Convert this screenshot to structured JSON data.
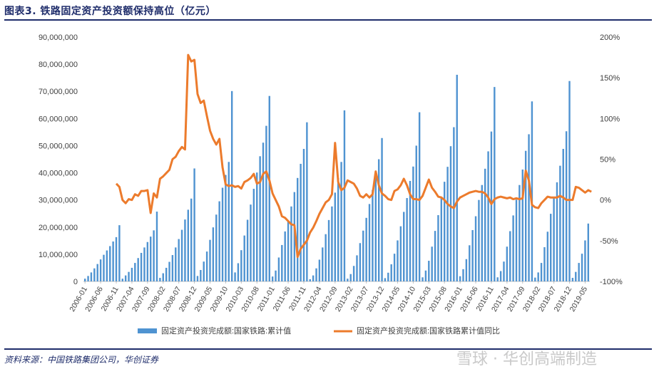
{
  "header": {
    "title": "图表3.    铁路固定资产投资额保持高位（亿元）"
  },
  "footer": {
    "source": "资料来源：中国铁路集团公司，华创证券",
    "watermark": "雪球 · 华创高端制造"
  },
  "colors": {
    "bar": "#4f93d1",
    "line": "#ec7b2c",
    "rule": "#1f2d6b",
    "text": "#333333"
  },
  "chart_data": {
    "type": "bar",
    "title": "",
    "xlabel": "",
    "ylabel": "",
    "y_left": {
      "min": 0,
      "max": 90000000,
      "ticks": [
        "0",
        "10,000,000",
        "20,000,000",
        "30,000,000",
        "40,000,000",
        "50,000,000",
        "60,000,000",
        "70,000,000",
        "80,000,000",
        "90,000,000"
      ]
    },
    "y_right": {
      "min": -100,
      "max": 200,
      "unit": "%",
      "ticks": [
        "-100%",
        "-50%",
        "0%",
        "50%",
        "100%",
        "150%",
        "200%"
      ]
    },
    "x_tick_labels": [
      "2006-01",
      "2006-06",
      "2006-11",
      "2007-04",
      "2007-09",
      "2008-02",
      "2008-07",
      "2008-12",
      "2009-05",
      "2009-10",
      "2010-03",
      "2010-08",
      "2011-01",
      "2011-06",
      "2011-11",
      "2012-04",
      "2012-09",
      "2013-02",
      "2013-07",
      "2013-12",
      "2014-05",
      "2014-10",
      "2015-03",
      "2015-08",
      "2016-01",
      "2016-06",
      "2016-11",
      "2017-04",
      "2017-09",
      "2018-02",
      "2018-07",
      "2018-12",
      "2019-05"
    ],
    "legend_position": "bottom",
    "series": [
      {
        "name": "固定资产投资完成额:国家铁路:累计值",
        "type": "bar",
        "axis": "left",
        "start": "2006-01",
        "values": [
          [
            1000000,
            2000000,
            3300000,
            4800000,
            6400000,
            8100000,
            9800000,
            11400000,
            13000000,
            14700000,
            16300000,
            20700000
          ],
          [
            1000000,
            2200000,
            3500000,
            5000000,
            6800000,
            8600000,
            10500000,
            12500000,
            14500000,
            16500000,
            18800000,
            25700000
          ],
          [
            1300000,
            3000000,
            5000000,
            7200000,
            9700000,
            12500000,
            15600000,
            19000000,
            22800000,
            26400000,
            30500000,
            41600000
          ],
          [
            2000000,
            4200000,
            7300000,
            11000000,
            15300000,
            19900000,
            24600000,
            29500000,
            34500000,
            39200000,
            44000000,
            70100000
          ],
          [
            3300000,
            6700000,
            11500000,
            16900000,
            22700000,
            28300000,
            34100000,
            40100000,
            46100000,
            51100000,
            57300000,
            68300000
          ],
          [
            1800000,
            4000000,
            8800000,
            13400000,
            18400000,
            22200000,
            27600000,
            32900000,
            38100000,
            43300000,
            48800000,
            58600000
          ],
          [
            800000,
            2200000,
            4800000,
            8000000,
            12500000,
            17400000,
            22600000,
            27600000,
            32700000,
            38100000,
            44000000,
            63000000
          ],
          [
            1000000,
            2700000,
            5700000,
            9600000,
            14100000,
            18700000,
            23400000,
            28500000,
            33700000,
            38600000,
            45000000,
            52800000
          ],
          [
            1200000,
            3200000,
            6300000,
            10200000,
            15100000,
            20300000,
            25600000,
            30700000,
            37000000,
            42300000,
            50000000,
            62300000
          ],
          [
            1500000,
            4000000,
            7600000,
            12800000,
            18600000,
            24400000,
            30600000,
            36700000,
            42200000,
            49800000,
            56800000,
            76100000
          ],
          [
            1900000,
            4500000,
            8200000,
            13300000,
            18900000,
            24000000,
            30000000,
            35500000,
            41500000,
            47900000,
            55200000,
            71600000
          ],
          [
            1500000,
            3800000,
            7300000,
            12800000,
            18500000,
            24300000,
            30100000,
            35500000,
            41200000,
            48100000,
            54200000,
            66300000
          ],
          [
            1400000,
            3300000,
            6800000,
            12600000,
            18300000,
            24900000,
            30800000,
            36500000,
            42600000,
            48800000,
            55300000,
            73800000
          ],
          [
            1300000,
            3500000,
            6800000,
            10200000,
            15100000,
            21300000
          ]
        ]
      },
      {
        "name": "固定资产投资完成额:国家铁路累计值同比",
        "type": "line",
        "axis": "right",
        "start": "2006-11",
        "values": [
          20,
          16,
          0,
          -4,
          1,
          0,
          7,
          5,
          11,
          11,
          12,
          -16,
          8,
          3,
          26,
          29,
          33,
          37,
          50,
          53,
          60,
          65,
          62,
          178,
          170,
          172,
          130,
          119,
          122,
          103,
          85,
          75,
          68,
          75,
          40,
          19,
          17,
          18,
          16,
          17,
          14,
          22,
          24,
          27,
          32,
          20,
          22,
          32,
          35,
          24,
          8,
          0,
          -8,
          -20,
          -22,
          -26,
          -30,
          -31,
          -70,
          -60,
          -55,
          -50,
          -40,
          -34,
          -26,
          -17,
          -10,
          -3,
          0,
          7,
          70,
          22,
          12,
          15,
          24,
          22,
          20,
          14,
          5,
          3,
          7,
          3,
          7,
          35,
          18,
          8,
          5,
          1,
          0,
          11,
          13,
          18,
          26,
          18,
          7,
          1,
          1,
          0,
          5,
          15,
          25,
          15,
          10,
          4,
          3,
          0,
          -5,
          -8,
          -10,
          -2,
          3,
          5,
          7,
          9,
          10,
          11,
          10,
          10,
          8,
          3,
          -5,
          1,
          3,
          4,
          3,
          2,
          3,
          1,
          2,
          1,
          2,
          36,
          24,
          -6,
          -9,
          -10,
          -4,
          0,
          4,
          3,
          3,
          3,
          5,
          3,
          0,
          0,
          0,
          16,
          15,
          12,
          9,
          12,
          10
        ]
      }
    ]
  }
}
